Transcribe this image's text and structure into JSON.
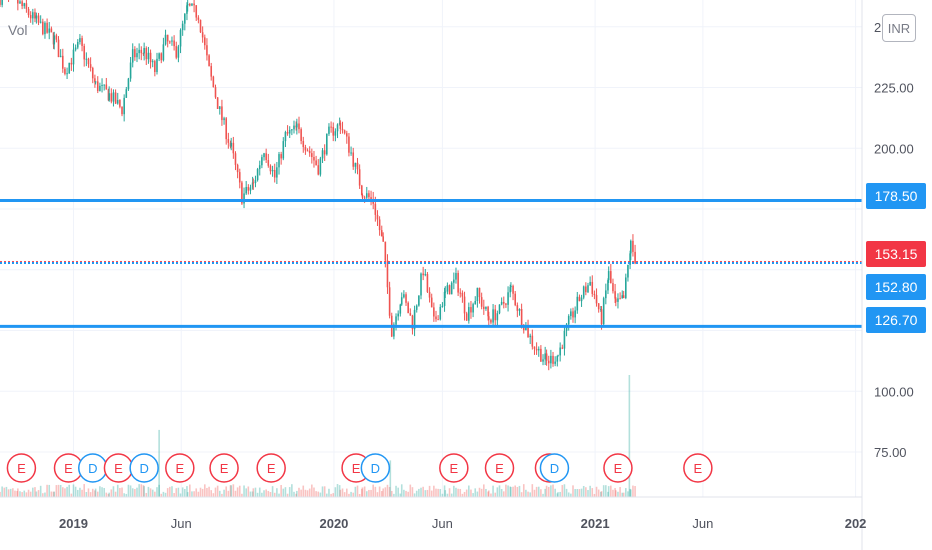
{
  "volume_label": "Vol",
  "currency": "INR",
  "chart_data": {
    "type": "candlestick",
    "title": "",
    "y_ticks": [
      75,
      100,
      125,
      150,
      175,
      200,
      225,
      250
    ],
    "y_tick_labels": [
      "75.00",
      "100.00",
      "",
      "",
      "",
      "200.00",
      "225.00",
      ""
    ],
    "ylim": [
      52,
      260
    ],
    "x_labels": [
      {
        "date": "2019-01-01",
        "label": "2019",
        "bold": true
      },
      {
        "date": "2019-06-01",
        "label": "Jun",
        "bold": false
      },
      {
        "date": "2020-01-01",
        "label": "2020",
        "bold": true
      },
      {
        "date": "2020-06-01",
        "label": "Jun",
        "bold": false
      },
      {
        "date": "2021-01-01",
        "label": "2021",
        "bold": true
      },
      {
        "date": "2021-06-01",
        "label": "Jun",
        "bold": false
      },
      {
        "date": "2022-01-01",
        "label": "202",
        "bold": true
      }
    ],
    "xlim": [
      "2018-09-20",
      "2022-01-10"
    ],
    "price_path": [
      [
        "2018-09-20",
        262
      ],
      [
        "2018-10-15",
        260
      ],
      [
        "2018-11-10",
        252
      ],
      [
        "2018-12-05",
        245
      ],
      [
        "2018-12-20",
        232
      ],
      [
        "2019-01-10",
        243
      ],
      [
        "2019-02-01",
        226
      ],
      [
        "2019-02-20",
        222
      ],
      [
        "2019-03-10",
        216
      ],
      [
        "2019-03-25",
        238
      ],
      [
        "2019-04-10",
        240
      ],
      [
        "2019-04-25",
        232
      ],
      [
        "2019-05-10",
        244
      ],
      [
        "2019-05-25",
        240
      ],
      [
        "2019-06-10",
        258
      ],
      [
        "2019-06-25",
        255
      ],
      [
        "2019-07-10",
        232
      ],
      [
        "2019-07-25",
        215
      ],
      [
        "2019-08-10",
        200
      ],
      [
        "2019-08-25",
        180
      ],
      [
        "2019-09-10",
        185
      ],
      [
        "2019-09-25",
        200
      ],
      [
        "2019-10-10",
        188
      ],
      [
        "2019-10-25",
        205
      ],
      [
        "2019-11-10",
        208
      ],
      [
        "2019-11-25",
        200
      ],
      [
        "2019-12-10",
        192
      ],
      [
        "2019-12-25",
        206
      ],
      [
        "2020-01-10",
        210
      ],
      [
        "2020-01-25",
        198
      ],
      [
        "2020-02-10",
        182
      ],
      [
        "2020-02-25",
        178
      ],
      [
        "2020-03-10",
        160
      ],
      [
        "2020-03-22",
        125
      ],
      [
        "2020-04-05",
        140
      ],
      [
        "2020-04-20",
        128
      ],
      [
        "2020-05-05",
        150
      ],
      [
        "2020-05-20",
        128
      ],
      [
        "2020-06-05",
        140
      ],
      [
        "2020-06-20",
        146
      ],
      [
        "2020-07-05",
        132
      ],
      [
        "2020-07-20",
        140
      ],
      [
        "2020-08-05",
        130
      ],
      [
        "2020-08-20",
        133
      ],
      [
        "2020-09-05",
        142
      ],
      [
        "2020-09-20",
        130
      ],
      [
        "2020-10-05",
        120
      ],
      [
        "2020-10-25",
        112
      ],
      [
        "2020-11-10",
        115
      ],
      [
        "2020-11-25",
        128
      ],
      [
        "2020-12-10",
        138
      ],
      [
        "2020-12-25",
        145
      ],
      [
        "2021-01-10",
        130
      ],
      [
        "2021-01-20",
        148
      ],
      [
        "2021-01-30",
        135
      ],
      [
        "2021-02-10",
        138
      ],
      [
        "2021-02-20",
        160
      ],
      [
        "2021-02-28",
        153
      ]
    ],
    "volume_spikes": [
      {
        "date": "2019-05-01",
        "relative": 0.55
      },
      {
        "date": "2020-03-20",
        "relative": 0.3
      },
      {
        "date": "2021-02-18",
        "relative": 1.0
      }
    ],
    "horizontal_levels": [
      {
        "value": 178.5,
        "label": "178.50",
        "color": "#2196f3",
        "style": "solid"
      },
      {
        "value": 153.15,
        "label": "153.15",
        "color": "#f23645",
        "style": "dotted"
      },
      {
        "value": 152.8,
        "label": "152.80",
        "color": "#2196f3",
        "style": "dotted"
      },
      {
        "value": 126.7,
        "label": "126.70",
        "color": "#2196f3",
        "style": "solid"
      }
    ],
    "events": [
      {
        "date": "2018-10-20",
        "type": "E"
      },
      {
        "date": "2018-12-25",
        "type": "E"
      },
      {
        "date": "2019-01-28",
        "type": "D"
      },
      {
        "date": "2019-03-05",
        "type": "E"
      },
      {
        "date": "2019-04-10",
        "type": "D"
      },
      {
        "date": "2019-05-30",
        "type": "E"
      },
      {
        "date": "2019-07-31",
        "type": "E"
      },
      {
        "date": "2019-10-05",
        "type": "E"
      },
      {
        "date": "2020-02-01",
        "type": "E"
      },
      {
        "date": "2020-02-28",
        "type": "D"
      },
      {
        "date": "2020-06-17",
        "type": "E"
      },
      {
        "date": "2020-08-20",
        "type": "E"
      },
      {
        "date": "2020-10-29",
        "type": "E"
      },
      {
        "date": "2020-11-05",
        "type": "D"
      },
      {
        "date": "2021-02-02",
        "type": "E"
      },
      {
        "date": "2021-05-25",
        "type": "E"
      }
    ],
    "colors": {
      "up": "#26a69a",
      "down": "#ef5350",
      "event_e": "#f23645",
      "event_d": "#2196f3",
      "grid": "#f0f3fa",
      "axis_text": "#50535e"
    }
  }
}
